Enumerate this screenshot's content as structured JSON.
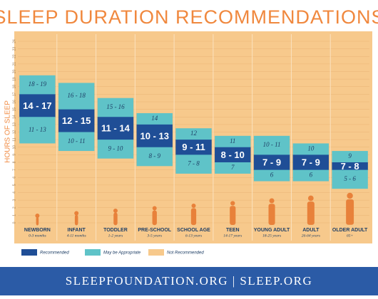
{
  "chart_data": {
    "type": "range_bar",
    "title": "SLEEP DURATION RECOMMENDATIONS",
    "y_label": "HOURS OF SLEEP",
    "categories": [
      "NEWBORN",
      "INFANT",
      "TODDLER",
      "PRE-SCHOOL",
      "SCHOOL AGE",
      "TEEN",
      "YOUNG ADULT",
      "ADULT",
      "OLDER ADULT"
    ],
    "ages": [
      "0-3 months",
      "4-11 months",
      "1-2 years",
      "3-5 years",
      "6-13 years",
      "14-17 years",
      "18-25 years",
      "26-64 years",
      "65+"
    ],
    "ylim": [
      0,
      24
    ],
    "yticks": [
      0,
      1,
      2,
      3,
      4,
      5,
      6,
      7,
      8,
      9,
      10,
      11,
      12,
      13,
      14,
      15,
      16,
      17,
      18,
      19,
      20,
      21,
      22,
      23,
      24
    ],
    "grid": true,
    "series": [
      {
        "name": "Recommended",
        "color": "#1f4e96",
        "low": [
          14,
          12,
          11,
          10,
          9,
          8,
          7,
          7,
          7
        ],
        "high": [
          17,
          15,
          14,
          13,
          11,
          10,
          9,
          9,
          8
        ],
        "value_labels": [
          "14 - 17",
          "12 - 15",
          "11 - 14",
          "10 - 13",
          "9 - 11",
          "8 - 10",
          "7 - 9",
          "7 - 9",
          "7 - 8"
        ]
      },
      {
        "name": "May be Appropriate",
        "color": "#5fc3c8",
        "lower": {
          "low": [
            11,
            10,
            9,
            8,
            7,
            7,
            6,
            6,
            5
          ],
          "high": [
            13,
            11,
            10,
            9,
            8,
            7,
            6,
            6,
            6
          ],
          "value_labels": [
            "11 - 13",
            "10 - 11",
            "9 - 10",
            "8 - 9",
            "7 - 8",
            "7",
            "6",
            "6",
            "5 - 6"
          ]
        },
        "upper": {
          "low": [
            18,
            16,
            15,
            14,
            12,
            11,
            10,
            10,
            9
          ],
          "high": [
            19,
            18,
            16,
            14,
            12,
            11,
            11,
            10,
            9
          ],
          "value_labels": [
            "18 - 19",
            "16 - 18",
            "15 - 16",
            "14",
            "12",
            "11",
            "10 - 11",
            "10",
            "9"
          ]
        }
      }
    ],
    "background": {
      "name": "Not Recommended",
      "color": "#f7c98c"
    },
    "footer": "SLEEPFOUNDATION.ORG | SLEEP.ORG"
  }
}
